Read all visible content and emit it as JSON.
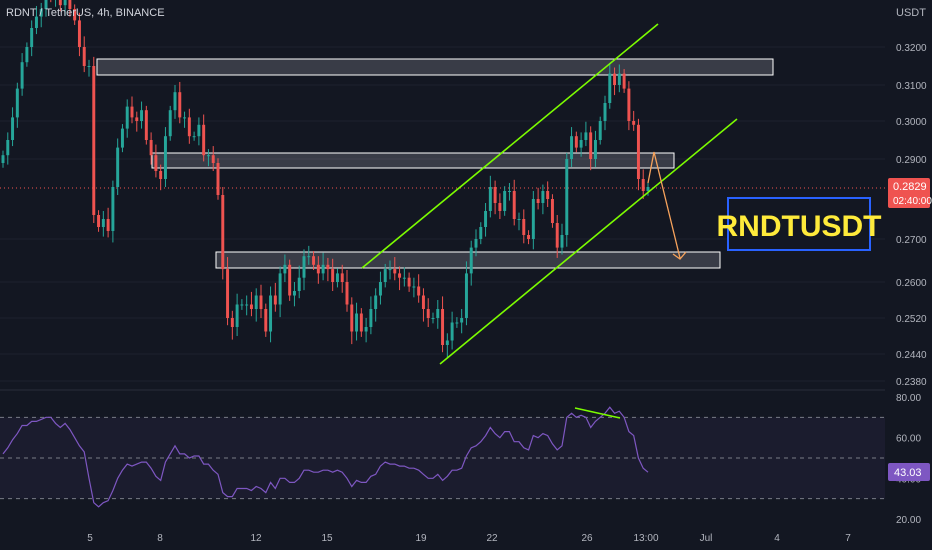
{
  "header": {
    "symbol_line": "RDNT / TetherUS, 4h, BINANCE",
    "currency": "USDT"
  },
  "title_badge": {
    "text": "RNDTUSDT",
    "text_color": "#ffeb3b",
    "border_color": "#2962ff",
    "bg_color": "#131722"
  },
  "colors": {
    "background": "#131722",
    "up": "#26a69a",
    "down": "#ef5350",
    "channel": "#7cfc00",
    "zone_fill": "#d1d4dc",
    "arrow": "#f7a35c",
    "rsi_line": "#7e57c2",
    "price_badge": "#ef5350"
  },
  "price_badge": {
    "price": "0.2829",
    "countdown": "02:40:00"
  },
  "rsi_badge": {
    "value": "43.03"
  },
  "chart_data": [
    {
      "type": "candlestick",
      "title": "RDNT / TetherUS, 4h, BINANCE",
      "y_unit": "USDT",
      "y_ticks": [
        "0.3200",
        "0.3100",
        "0.3000",
        "0.2900",
        "0.2700",
        "0.2600",
        "0.2520",
        "0.2440",
        "0.2380"
      ],
      "x_ticks": [
        "5",
        "8",
        "12",
        "15",
        "19",
        "22",
        "26",
        "13:00",
        "Jul",
        "4",
        "7"
      ],
      "last_price": 0.2829,
      "ohlc_closes": [
        0.291,
        0.295,
        0.301,
        0.309,
        0.316,
        0.32,
        0.325,
        0.328,
        0.33,
        0.334,
        0.333,
        0.335,
        0.331,
        0.333,
        0.33,
        0.327,
        0.32,
        0.315,
        0.315,
        0.276,
        0.273,
        0.275,
        0.272,
        0.283,
        0.293,
        0.298,
        0.304,
        0.301,
        0.3,
        0.303,
        0.295,
        0.291,
        0.287,
        0.285,
        0.296,
        0.303,
        0.308,
        0.301,
        0.301,
        0.296,
        0.296,
        0.299,
        0.291,
        0.291,
        0.289,
        0.281,
        0.263,
        0.252,
        0.25,
        0.255,
        0.255,
        0.255,
        0.254,
        0.257,
        0.254,
        0.249,
        0.257,
        0.255,
        0.262,
        0.264,
        0.257,
        0.258,
        0.261,
        0.266,
        0.266,
        0.264,
        0.262,
        0.264,
        0.263,
        0.26,
        0.262,
        0.26,
        0.255,
        0.249,
        0.253,
        0.249,
        0.25,
        0.254,
        0.257,
        0.26,
        0.263,
        0.263,
        0.262,
        0.261,
        0.261,
        0.259,
        0.259,
        0.257,
        0.254,
        0.252,
        0.252,
        0.254,
        0.246,
        0.247,
        0.251,
        0.251,
        0.252,
        0.262,
        0.268,
        0.27,
        0.273,
        0.277,
        0.283,
        0.279,
        0.277,
        0.282,
        0.282,
        0.275,
        0.275,
        0.271,
        0.27,
        0.28,
        0.279,
        0.282,
        0.28,
        0.274,
        0.268,
        0.271,
        0.29,
        0.296,
        0.293,
        0.295,
        0.297,
        0.29,
        0.295,
        0.3,
        0.305,
        0.313,
        0.31,
        0.313,
        0.309,
        0.3,
        0.299,
        0.285,
        0.282,
        0.283
      ],
      "rsi": {
        "name": "RSI",
        "y_ticks": [
          "80.00",
          "60.00",
          "40.00",
          "20.00"
        ],
        "upper_band": 70,
        "mid_band": 50,
        "lower_band": 30,
        "last_value": 43.03,
        "values": [
          52,
          55,
          59,
          62,
          66,
          66,
          68,
          68,
          69,
          70,
          70,
          67,
          65,
          67,
          64,
          60,
          56,
          53,
          40,
          28,
          26,
          28,
          29,
          34,
          40,
          44,
          47,
          46,
          47,
          48,
          48,
          45,
          41,
          39,
          48,
          52,
          56,
          52,
          52,
          50,
          51,
          51,
          47,
          47,
          44,
          42,
          33,
          31,
          31,
          35,
          35,
          35,
          34,
          36,
          35,
          33,
          38,
          35,
          40,
          40,
          38,
          38,
          40,
          44,
          44,
          43,
          43,
          44,
          44,
          43,
          44,
          43,
          40,
          36,
          39,
          38,
          38,
          41,
          42,
          46,
          48,
          47,
          47,
          46,
          46,
          45,
          45,
          44,
          42,
          40,
          40,
          42,
          39,
          41,
          44,
          44,
          45,
          51,
          55,
          56,
          58,
          61,
          65,
          62,
          60,
          63,
          63,
          58,
          58,
          55,
          54,
          61,
          60,
          62,
          61,
          57,
          54,
          56,
          70,
          72,
          70,
          71,
          70,
          65,
          68,
          70,
          72,
          75,
          72,
          73,
          70,
          63,
          61,
          50,
          45,
          43
        ]
      }
    }
  ]
}
